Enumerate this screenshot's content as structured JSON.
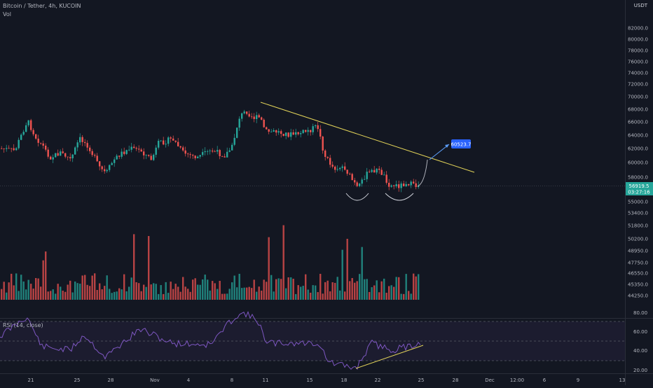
{
  "header": {
    "symbol_line": "Bitcoin / Tether, 4h, KUCOIN",
    "volume_label": "Vol",
    "rsi_label": "RSI (14, close)",
    "currency": "USDT"
  },
  "price_axis": {
    "ticks": [
      "82000.0",
      "80000.0",
      "78000.0",
      "76000.0",
      "74000.0",
      "72000.0",
      "70000.0",
      "68000.0",
      "66000.0",
      "64000.0",
      "62000.0",
      "60000.0",
      "58000.0",
      "55000.0",
      "53400.0",
      "51800.0",
      "50200.0",
      "48950.0",
      "47750.0",
      "46550.0",
      "45350.0",
      "44250.0"
    ],
    "current_price": "56919.5",
    "countdown": "03:27:16"
  },
  "rsi_axis": {
    "ticks": [
      "80.00",
      "60.00",
      "40.00",
      "20.00"
    ]
  },
  "time_axis": {
    "labels": [
      "21",
      "25",
      "28",
      "Nov",
      "4",
      "8",
      "11",
      "15",
      "18",
      "22",
      "25",
      "28",
      "Dec",
      "12:00",
      "6",
      "9",
      "13"
    ]
  },
  "annotation": {
    "target_price": "60523.7"
  },
  "colors": {
    "background": "#131722",
    "up": "#26a69a",
    "down": "#ef5350",
    "trendline": "#e3d459",
    "rsi_line": "#7e57c2",
    "target_tag": "#2962ff"
  },
  "chart_data": {
    "type": "candlestick",
    "interval": "4h",
    "price_range": [
      53000,
      84000
    ],
    "trendline_price": [
      69000,
      58800
    ],
    "target": 60523.7,
    "rsi_range": [
      20,
      80
    ],
    "rsi_bands": [
      70,
      50,
      30
    ]
  }
}
